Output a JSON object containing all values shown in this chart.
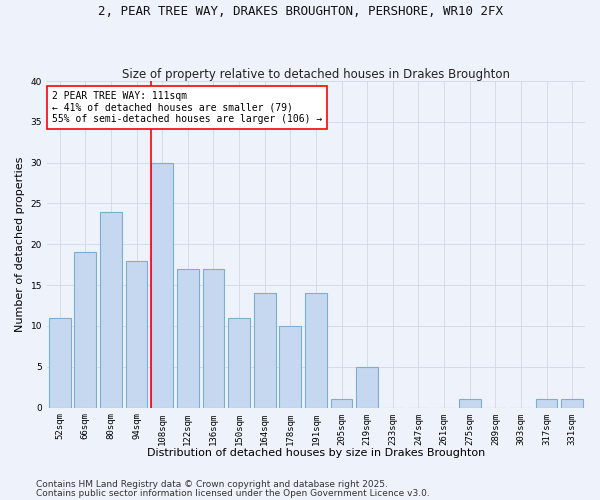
{
  "title": "2, PEAR TREE WAY, DRAKES BROUGHTON, PERSHORE, WR10 2FX",
  "subtitle": "Size of property relative to detached houses in Drakes Broughton",
  "xlabel": "Distribution of detached houses by size in Drakes Broughton",
  "ylabel": "Number of detached properties",
  "categories": [
    "52sqm",
    "66sqm",
    "80sqm",
    "94sqm",
    "108sqm",
    "122sqm",
    "136sqm",
    "150sqm",
    "164sqm",
    "178sqm",
    "191sqm",
    "205sqm",
    "219sqm",
    "233sqm",
    "247sqm",
    "261sqm",
    "275sqm",
    "289sqm",
    "303sqm",
    "317sqm",
    "331sqm"
  ],
  "values": [
    11,
    19,
    24,
    18,
    30,
    17,
    17,
    11,
    14,
    10,
    14,
    1,
    5,
    0,
    0,
    0,
    1,
    0,
    0,
    1,
    1
  ],
  "bar_color": "#c5d8f0",
  "bar_edge_color": "#7aafd4",
  "bar_linewidth": 0.8,
  "vline_x_index": 4,
  "vline_color": "red",
  "vline_linewidth": 1.2,
  "annotation_text": "2 PEAR TREE WAY: 111sqm\n← 41% of detached houses are smaller (79)\n55% of semi-detached houses are larger (106) →",
  "annotation_box_color": "white",
  "annotation_box_edge": "red",
  "ylim": [
    0,
    40
  ],
  "yticks": [
    0,
    5,
    10,
    15,
    20,
    25,
    30,
    35,
    40
  ],
  "grid_color": "#d0d8e8",
  "bg_color": "#eef2fb",
  "footer_line1": "Contains HM Land Registry data © Crown copyright and database right 2025.",
  "footer_line2": "Contains public sector information licensed under the Open Government Licence v3.0.",
  "title_fontsize": 9,
  "subtitle_fontsize": 8.5,
  "tick_fontsize": 6.5,
  "ylabel_fontsize": 8,
  "xlabel_fontsize": 8,
  "annotation_fontsize": 7,
  "footer_fontsize": 6.5
}
